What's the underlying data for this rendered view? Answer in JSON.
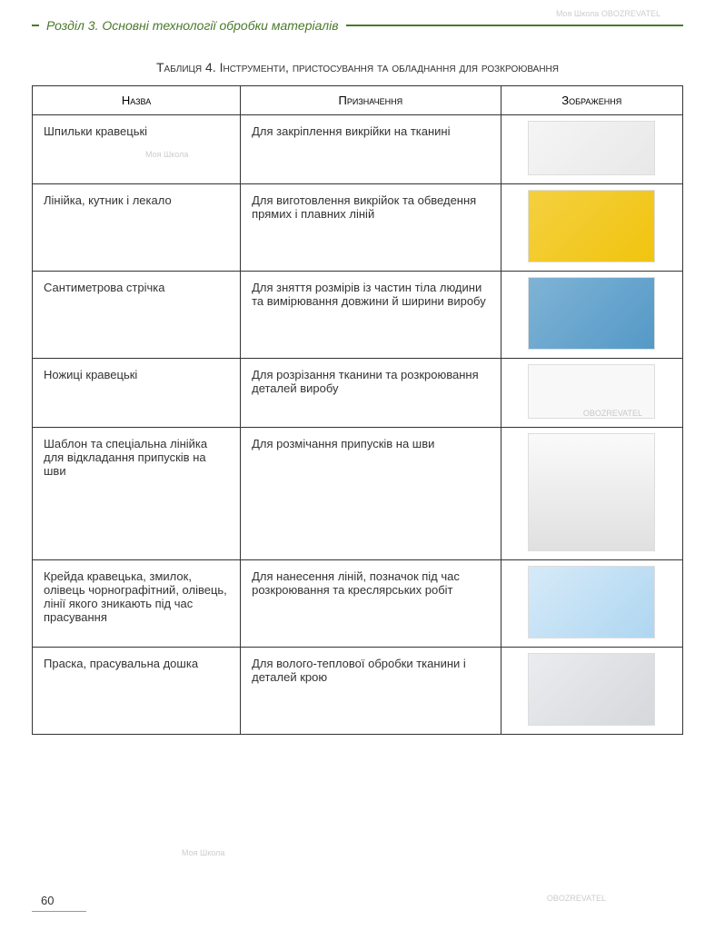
{
  "section": {
    "header": "Розділ 3. Основні технології обробки матеріалів"
  },
  "table_caption": {
    "prefix": "Таблиця 4. ",
    "text": "Інструменти, пристосування та обладнання для розкроювання"
  },
  "columns": {
    "name": "Назва",
    "purpose": "Призначення",
    "image": "Зображення"
  },
  "rows": [
    {
      "name": "Шпильки кравецькі",
      "purpose": "Для закріплення викрійки на тканині",
      "image_desc": "sewing-pins",
      "img_class": "svg-pins"
    },
    {
      "name": "Лінійка, кутник і лекало",
      "purpose": "Для виготовлення викрійок та обведення прямих і плавних ліній",
      "image_desc": "ruler-square-curve",
      "img_class": "svg-ruler img-tall"
    },
    {
      "name": "Сантиметрова стрічка",
      "purpose": "Для зняття розмірів із частин тіла людини та вимірювання довжини й ширини виробу",
      "image_desc": "measuring-tape",
      "img_class": "svg-tape img-tall"
    },
    {
      "name": "Ножиці кравецькі",
      "purpose": "Для розрізання тканини та розкроювання деталей виробу",
      "image_desc": "tailor-scissors",
      "img_class": "svg-scissors"
    },
    {
      "name": "Шаблон та спеціальна лінійка для відкладання припусків на шви",
      "purpose": "Для розмічання припусків на шви",
      "image_desc": "seam-template-ruler",
      "img_class": "svg-template img-xtall"
    },
    {
      "name": "Крейда кравецька, змилок, олівець чорнографітний, олівець, лінії якого зникають під час прасування",
      "purpose": "Для нанесення ліній, позначок під час розкроювання та креслярських робіт",
      "image_desc": "tailor-chalk-pencils",
      "img_class": "svg-chalk img-tall"
    },
    {
      "name": "Праска, прасувальна дошка",
      "purpose": "Для волого-теплової обробки тканини і деталей крою",
      "image_desc": "iron-ironing-board",
      "img_class": "svg-iron img-tall"
    }
  ],
  "page_number": "60",
  "watermarks": {
    "brand1": "Моя Школа",
    "brand2": "OBOZREVATEL"
  }
}
